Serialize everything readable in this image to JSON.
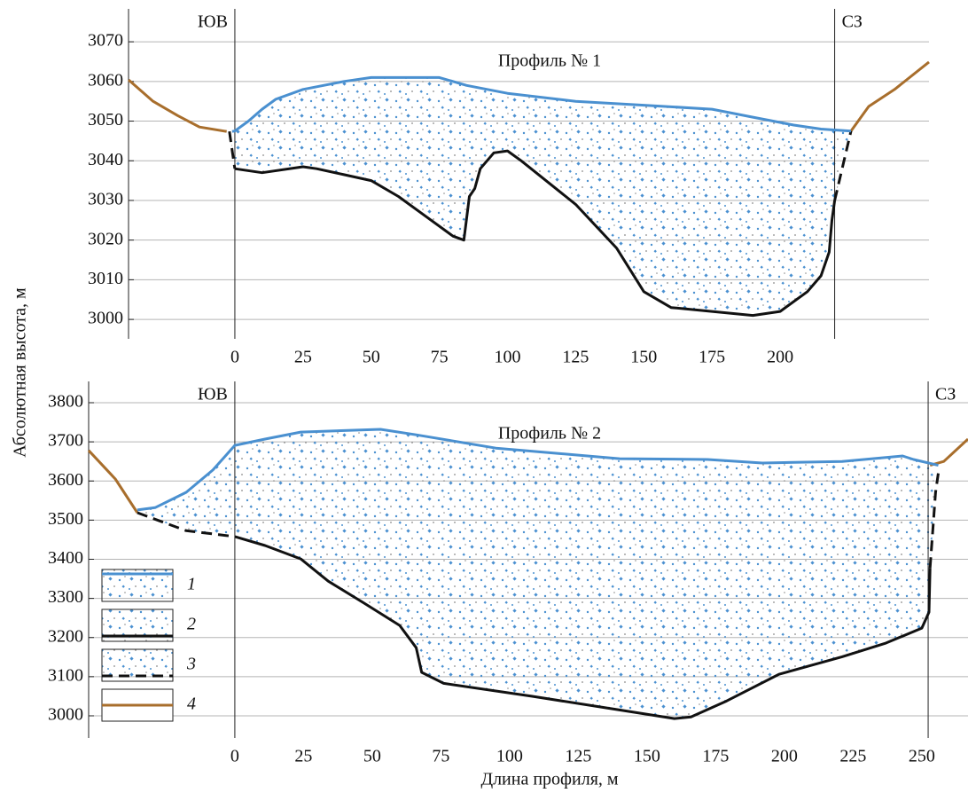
{
  "chart_data": [
    {
      "type": "line",
      "title": "Профиль № 1",
      "ylabel": "Абсолютная высота, м",
      "xlim": [
        -39,
        254.6
      ],
      "ylim": [
        2995.1,
        3078.3
      ],
      "xticks": [
        0,
        25,
        50,
        75,
        100,
        125,
        150,
        175,
        200
      ],
      "yticks": [
        3000,
        3010,
        3020,
        3030,
        3040,
        3050,
        3060,
        3070
      ],
      "grid": true,
      "markers": [
        {
          "x": 0,
          "label": "ЮВ"
        },
        {
          "x": 220,
          "label": "СЗ"
        }
      ],
      "series": [
        {
          "name": "1",
          "color": "#4a90d0",
          "dash": false,
          "x": [
            -1,
            0,
            5,
            10,
            15,
            25,
            40,
            50,
            60,
            75,
            85,
            100,
            125,
            150,
            175,
            190,
            205,
            215,
            226
          ],
          "values": [
            3047.4,
            3047.5,
            3050,
            3053,
            3055.5,
            3058,
            3060,
            3061,
            3061,
            3061,
            3059,
            3057,
            3055,
            3054,
            3053,
            3051,
            3049,
            3048,
            3047.5
          ]
        },
        {
          "name": "2",
          "color": "#111111",
          "dash": false,
          "x": [
            0,
            10,
            25,
            30,
            40,
            50,
            60,
            70,
            80,
            84,
            86,
            88,
            90,
            95,
            100,
            105,
            125,
            140,
            150,
            160,
            175,
            190,
            200,
            210,
            215,
            218,
            219,
            220
          ],
          "values": [
            3038,
            3037,
            3038.5,
            3038,
            3036.5,
            3035,
            3031,
            3026,
            3021,
            3020,
            3031,
            3033,
            3038,
            3042,
            3042.5,
            3040,
            3029,
            3018,
            3007,
            3003,
            3002,
            3001,
            3002,
            3007,
            3011,
            3017,
            3025,
            3030
          ]
        },
        {
          "name": "3",
          "color": "#111111",
          "dash": true,
          "x": [
            -2,
            0,
            null,
            220,
            226
          ],
          "values": [
            3047.4,
            3038,
            null,
            3030,
            3047.5
          ]
        },
        {
          "name": "4",
          "color": "#a86e2c",
          "dash": false,
          "x": [
            -39,
            -30,
            -21,
            -13,
            -3,
            null,
            226,
            232.5,
            242,
            254.6
          ],
          "values": [
            3060.4,
            3055,
            3051.4,
            3048.5,
            3047.4,
            null,
            3047.5,
            3053.7,
            3058,
            3064.9
          ]
        }
      ]
    },
    {
      "type": "line",
      "title": "Профиль № 2",
      "xlabel": "Длина профиля, м",
      "xlim": [
        -53.2,
        266.8
      ],
      "ylim": [
        2943.3,
        3854.4
      ],
      "xticks": [
        0,
        25,
        50,
        75,
        100,
        125,
        150,
        175,
        200,
        225,
        250
      ],
      "yticks": [
        3000,
        3100,
        3200,
        3300,
        3400,
        3500,
        3600,
        3700,
        3800
      ],
      "grid": true,
      "legend": "lower-left",
      "markers": [
        {
          "x": 0,
          "label": "ЮВ"
        },
        {
          "x": 252.3,
          "label": "СЗ"
        }
      ],
      "series": [
        {
          "name": "1",
          "color": "#4a90d0",
          "dash": false,
          "x": [
            -35.5,
            -29,
            -17.7,
            -8,
            0,
            11,
            24,
            53,
            66,
            95,
            140,
            172,
            192,
            221,
            243,
            247,
            256
          ],
          "values": [
            3526,
            3532,
            3571,
            3628,
            3691,
            3707,
            3725,
            3732,
            3718,
            3684,
            3657,
            3655,
            3646,
            3650,
            3664,
            3655,
            3640
          ]
        },
        {
          "name": "2",
          "color": "#111111",
          "dash": false,
          "x": [
            0,
            11,
            24,
            34,
            47,
            60,
            66,
            68,
            76,
            108,
            140,
            160,
            166,
            179,
            198,
            221,
            237,
            250,
            252.6,
            253
          ],
          "values": [
            3458,
            3435,
            3401,
            3344,
            3288,
            3231,
            3174,
            3111,
            3083,
            3050,
            3015,
            2993,
            2997,
            3038,
            3106,
            3151,
            3186,
            3224,
            3265,
            3378
          ]
        },
        {
          "name": "3",
          "color": "#111111",
          "dash": true,
          "x": [
            -35.5,
            -17.7,
            0,
            null,
            253,
            255,
            256
          ],
          "values": [
            3519,
            3473,
            3458,
            null,
            3378,
            3571,
            3620
          ]
        },
        {
          "name": "4",
          "color": "#a86e2c",
          "dash": false,
          "x": [
            -53.2,
            -43.5,
            -35.5,
            null,
            253,
            258,
            266.8
          ],
          "values": [
            3678,
            3605,
            3519,
            null,
            3640,
            3650,
            3707
          ]
        }
      ]
    }
  ]
}
